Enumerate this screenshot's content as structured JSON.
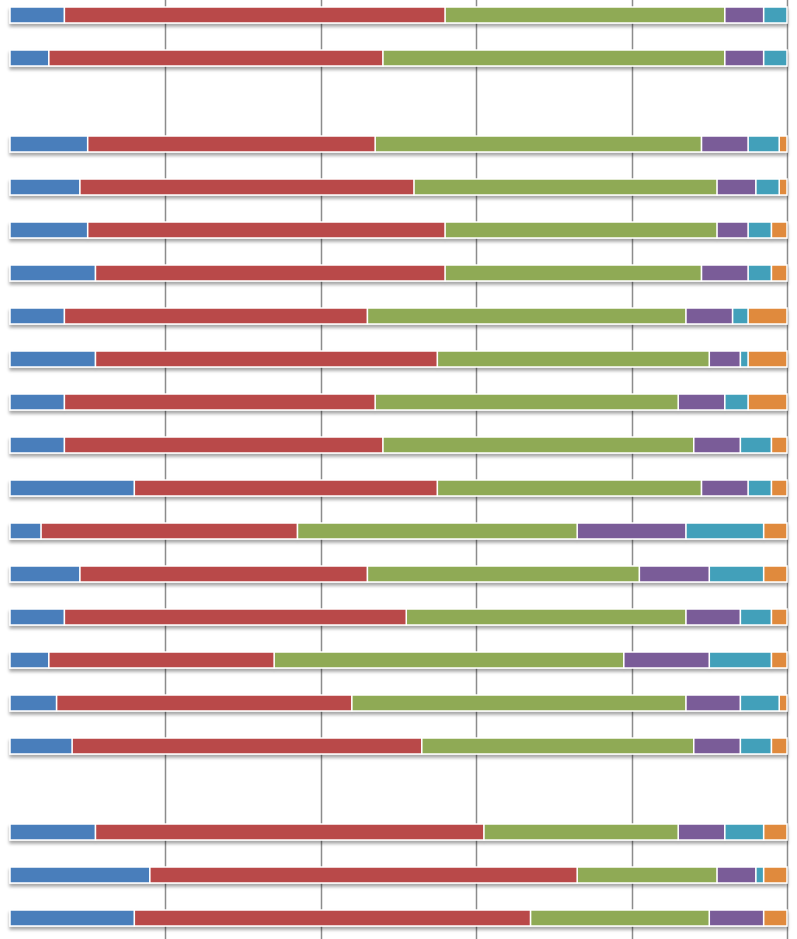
{
  "chart_data": {
    "type": "bar",
    "orientation": "horizontal",
    "stacked": true,
    "normalized": true,
    "xlim": [
      0,
      1
    ],
    "xticks": [
      0,
      0.2,
      0.4,
      0.6,
      0.8,
      1.0
    ],
    "grid": true,
    "legend": "none",
    "series_colors": [
      "#4a7ebb",
      "#b94a48",
      "#8faa55",
      "#7a5b98",
      "#43a0ba",
      "#e08a3c"
    ],
    "rows": [
      {
        "values": [
          0.07,
          0.49,
          0.36,
          0.05,
          0.03,
          0.0
        ]
      },
      {
        "values": [
          0.05,
          0.43,
          0.44,
          0.05,
          0.03,
          0.0
        ]
      },
      {
        "blank": true
      },
      {
        "values": [
          0.1,
          0.37,
          0.42,
          0.06,
          0.04,
          0.01
        ]
      },
      {
        "values": [
          0.09,
          0.43,
          0.39,
          0.05,
          0.03,
          0.01
        ]
      },
      {
        "values": [
          0.1,
          0.46,
          0.35,
          0.04,
          0.03,
          0.02
        ]
      },
      {
        "values": [
          0.11,
          0.45,
          0.33,
          0.06,
          0.03,
          0.02
        ]
      },
      {
        "values": [
          0.07,
          0.39,
          0.41,
          0.06,
          0.02,
          0.05
        ]
      },
      {
        "values": [
          0.11,
          0.44,
          0.35,
          0.04,
          0.01,
          0.05
        ]
      },
      {
        "values": [
          0.07,
          0.4,
          0.39,
          0.06,
          0.03,
          0.05
        ]
      },
      {
        "values": [
          0.07,
          0.41,
          0.4,
          0.06,
          0.04,
          0.02
        ]
      },
      {
        "values": [
          0.16,
          0.39,
          0.34,
          0.06,
          0.03,
          0.02
        ]
      },
      {
        "values": [
          0.04,
          0.33,
          0.36,
          0.14,
          0.1,
          0.03
        ]
      },
      {
        "values": [
          0.09,
          0.37,
          0.35,
          0.09,
          0.07,
          0.03
        ]
      },
      {
        "values": [
          0.07,
          0.44,
          0.36,
          0.07,
          0.04,
          0.02
        ]
      },
      {
        "values": [
          0.05,
          0.29,
          0.45,
          0.11,
          0.08,
          0.02
        ]
      },
      {
        "values": [
          0.06,
          0.38,
          0.43,
          0.07,
          0.05,
          0.01
        ]
      },
      {
        "values": [
          0.08,
          0.45,
          0.35,
          0.06,
          0.04,
          0.02
        ]
      },
      {
        "blank": true
      },
      {
        "values": [
          0.11,
          0.5,
          0.25,
          0.06,
          0.05,
          0.03
        ]
      },
      {
        "values": [
          0.18,
          0.55,
          0.18,
          0.05,
          0.01,
          0.03
        ]
      },
      {
        "values": [
          0.16,
          0.51,
          0.23,
          0.07,
          0.0,
          0.03
        ]
      }
    ]
  }
}
